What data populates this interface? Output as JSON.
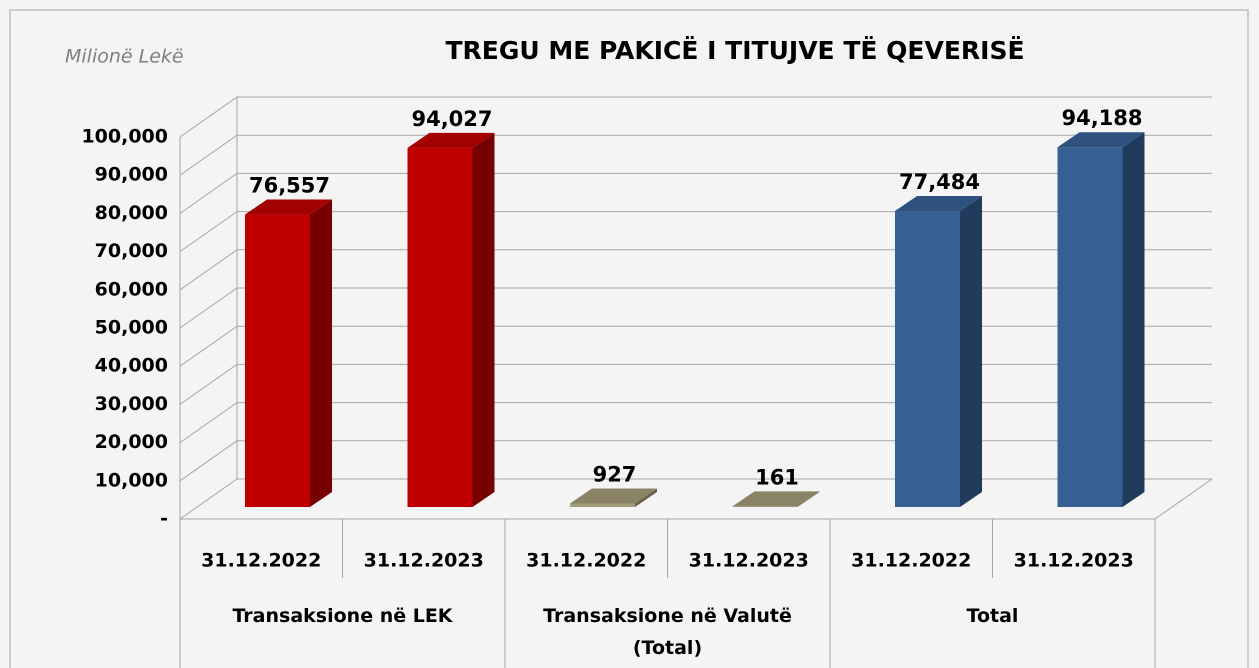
{
  "chart_data": {
    "type": "bar3d",
    "title": "TREGU ME PAKICË I TITUJVE TË QEVERISË",
    "unit_label": "Milionë Lekë",
    "groups": [
      "Transaksione në LEK",
      "Transaksione në Valutë (Total)",
      "Total"
    ],
    "categories": [
      "31.12.2022",
      "31.12.2023",
      "31.12.2022",
      "31.12.2023",
      "31.12.2022",
      "31.12.2023"
    ],
    "values": [
      76557,
      94027,
      927,
      161,
      77484,
      94188
    ],
    "value_labels": [
      "76,557",
      "94,027",
      "927",
      "161",
      "77,484",
      "94,188"
    ],
    "colors": [
      "#c00000",
      "#c00000",
      "#a49a78",
      "#a49a78",
      "#365f94",
      "#365f94"
    ],
    "ylim": [
      0,
      100000
    ],
    "yticks": [
      {
        "value": 0,
        "label": "-"
      },
      {
        "value": 10000,
        "label": "10,000"
      },
      {
        "value": 20000,
        "label": "20,000"
      },
      {
        "value": 30000,
        "label": "30,000"
      },
      {
        "value": 40000,
        "label": "40,000"
      },
      {
        "value": 50000,
        "label": "50,000"
      },
      {
        "value": 60000,
        "label": "60,000"
      },
      {
        "value": 70000,
        "label": "70,000"
      },
      {
        "value": 80000,
        "label": "80,000"
      },
      {
        "value": 90000,
        "label": "90,000"
      },
      {
        "value": 100000,
        "label": "100,000"
      }
    ],
    "grid": true
  }
}
